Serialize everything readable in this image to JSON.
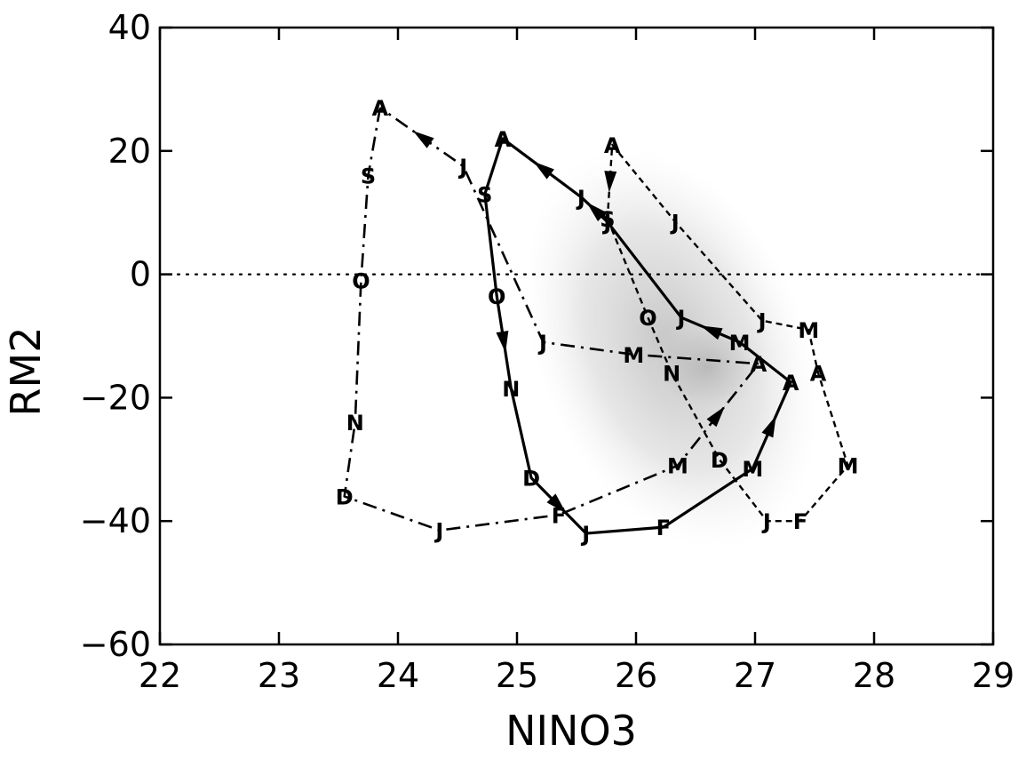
{
  "chart_data": {
    "type": "line",
    "xlabel": "NINO3",
    "ylabel": "RM2",
    "xlim": [
      22,
      29
    ],
    "ylim": [
      -60,
      40
    ],
    "xticks": [
      22,
      23,
      24,
      25,
      26,
      27,
      28,
      29
    ],
    "yticks": [
      -60,
      -40,
      -20,
      0,
      20,
      40
    ],
    "reference_line": {
      "y": 0,
      "style": "dotted"
    },
    "grid": false,
    "legend": "none",
    "series": [
      {
        "style": "solid",
        "points": [
          {
            "x": 24.73,
            "y": 13,
            "label": "S"
          },
          {
            "x": 24.83,
            "y": -3.5,
            "label": "O"
          },
          {
            "x": 24.95,
            "y": -18.5,
            "label": "N"
          },
          {
            "x": 25.12,
            "y": -33,
            "label": "D"
          },
          {
            "x": 25.58,
            "y": -42,
            "label": "J"
          },
          {
            "x": 26.23,
            "y": -41,
            "label": "F"
          },
          {
            "x": 26.98,
            "y": -31.5,
            "label": "M"
          },
          {
            "x": 27.3,
            "y": -17.5,
            "label": "A"
          },
          {
            "x": 26.87,
            "y": -11,
            "label": "M"
          },
          {
            "x": 26.38,
            "y": -7,
            "label": "J"
          },
          {
            "x": 25.76,
            "y": 8.5,
            "label": "J"
          },
          {
            "x": 25.54,
            "y": 12.5,
            "label": "J"
          },
          {
            "x": 24.88,
            "y": 22,
            "label": "A"
          },
          {
            "x": 24.73,
            "y": 13,
            "label": "S"
          }
        ],
        "arrows_at_segments": [
          1,
          3,
          6,
          8,
          10,
          11
        ]
      },
      {
        "style": "dashed",
        "points": [
          {
            "x": 25.76,
            "y": 9,
            "label": "S"
          },
          {
            "x": 26.1,
            "y": -7,
            "label": "O"
          },
          {
            "x": 26.3,
            "y": -16,
            "label": "N"
          },
          {
            "x": 26.7,
            "y": -30,
            "label": "D"
          },
          {
            "x": 27.1,
            "y": -40,
            "label": "J"
          },
          {
            "x": 27.38,
            "y": -40,
            "label": "F"
          },
          {
            "x": 27.78,
            "y": -31,
            "label": "M"
          },
          {
            "x": 27.53,
            "y": -16,
            "label": "A"
          },
          {
            "x": 27.45,
            "y": -9,
            "label": "M"
          },
          {
            "x": 27.06,
            "y": -7.5,
            "label": "J"
          },
          {
            "x": 26.33,
            "y": 8.5,
            "label": "J"
          },
          {
            "x": 25.8,
            "y": 21,
            "label": "A"
          },
          {
            "x": 25.76,
            "y": 9,
            "label": "S"
          }
        ],
        "arrows_at_segments": [
          11
        ]
      },
      {
        "style": "dash-dot",
        "points": [
          {
            "x": 23.85,
            "y": 27,
            "label": "A"
          },
          {
            "x": 23.75,
            "y": 16,
            "label": "S"
          },
          {
            "x": 23.69,
            "y": -1,
            "label": "O"
          },
          {
            "x": 23.64,
            "y": -24,
            "label": "N"
          },
          {
            "x": 23.55,
            "y": -36,
            "label": "D"
          },
          {
            "x": 24.35,
            "y": -41.5,
            "label": "J"
          },
          {
            "x": 25.35,
            "y": -39,
            "label": "F"
          },
          {
            "x": 26.35,
            "y": -31,
            "label": "M"
          },
          {
            "x": 27.03,
            "y": -14.5,
            "label": "A"
          },
          {
            "x": 25.98,
            "y": -13,
            "label": "M"
          },
          {
            "x": 25.22,
            "y": -11,
            "label": "J"
          },
          {
            "x": 24.55,
            "y": 17.5,
            "label": "J"
          },
          {
            "x": 23.85,
            "y": 27,
            "label": "A"
          }
        ],
        "arrows_at_segments": [
          7,
          11
        ]
      }
    ]
  }
}
